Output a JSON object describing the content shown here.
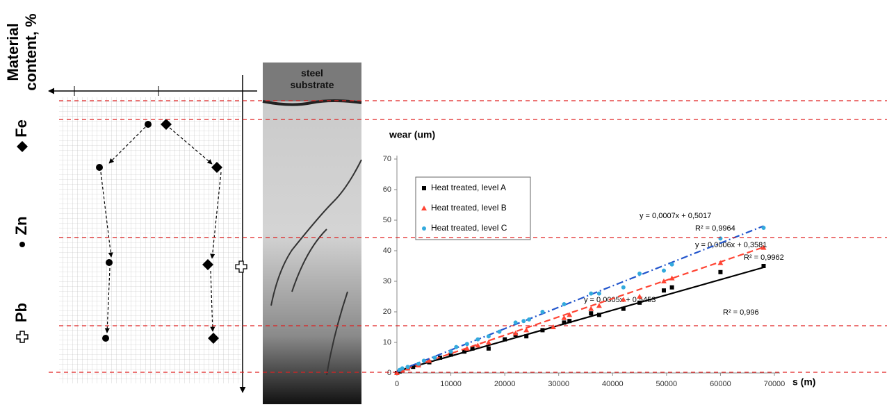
{
  "diagram": {
    "axis_title": [
      "Material",
      "content, %"
    ],
    "elements": [
      "Fe",
      "Zn",
      "Pb"
    ],
    "micrograph_label": [
      "steel",
      "substrate"
    ]
  },
  "chart_data": {
    "type": "scatter",
    "y_label": "wear (um)",
    "x_label": "s (m)",
    "xlim": [
      0,
      70000
    ],
    "xticks": [
      0,
      10000,
      20000,
      30000,
      40000,
      50000,
      60000,
      70000
    ],
    "ylim": [
      0,
      70
    ],
    "yticks": [
      0,
      10,
      20,
      30,
      40,
      50,
      60,
      70
    ],
    "grid": false,
    "series": [
      {
        "name": "Heat treated, level A",
        "color": "#000000",
        "marker": "square",
        "line": "solid",
        "x": [
          0,
          500,
          1000,
          2000,
          3000,
          4000,
          6000,
          8000,
          10000,
          12500,
          14000,
          17000,
          20000,
          22000,
          24000,
          27000,
          31000,
          32000,
          36000,
          37500,
          42000,
          45000,
          49500,
          51000,
          60000,
          68000
        ],
        "values": [
          0,
          0.5,
          1,
          1.5,
          2,
          2.5,
          3.5,
          5,
          6,
          7,
          8,
          8,
          11,
          12.5,
          12,
          14,
          16.5,
          17,
          19.5,
          19,
          21,
          23,
          27,
          28,
          33,
          35
        ],
        "trend": {
          "slope": 0.0005,
          "intercept": 0.5453,
          "equation": "y = 0,0005x + 0,5453",
          "r2": "R² = 0,996"
        }
      },
      {
        "name": "Heat treated, level B",
        "color": "#ff4433",
        "marker": "triangle",
        "line": "dashed",
        "x": [
          0,
          1000,
          2000,
          4000,
          6000,
          10000,
          13000,
          15000,
          17000,
          22000,
          24000,
          29000,
          31000,
          32000,
          36000,
          37500,
          42000,
          45000,
          49500,
          51000,
          60000,
          68000
        ],
        "values": [
          0,
          1,
          1.5,
          2.5,
          4,
          7,
          8,
          9,
          10,
          13,
          14,
          15,
          18,
          19,
          21,
          22,
          24,
          25,
          30,
          31,
          36,
          41
        ],
        "trend": {
          "slope": 0.0006,
          "intercept": 0.3581,
          "equation": "y = 0,0006x + 0,3581",
          "r2": "R² = 0,9962"
        }
      },
      {
        "name": "Heat treated, level C",
        "color": "#33aadd",
        "marker": "circle",
        "line": "dashdot",
        "x": [
          500,
          1000,
          2000,
          4000,
          5000,
          7000,
          10000,
          11000,
          13000,
          15000,
          17000,
          19000,
          22000,
          23500,
          24500,
          27000,
          31000,
          36000,
          37500,
          42000,
          45000,
          49500,
          51000,
          60000,
          68000
        ],
        "values": [
          1,
          1.5,
          2,
          3,
          4,
          5,
          7,
          8.5,
          9.5,
          11,
          12,
          13.5,
          16.5,
          17,
          17.5,
          20,
          22.5,
          26,
          26,
          28,
          32.5,
          33.5,
          35.5,
          44,
          47.5
        ],
        "trend": {
          "slope": 0.0007,
          "intercept": 0.5017,
          "equation": "y = 0,0007x + 0,5017",
          "r2": "R² = 0,9964"
        }
      }
    ]
  }
}
